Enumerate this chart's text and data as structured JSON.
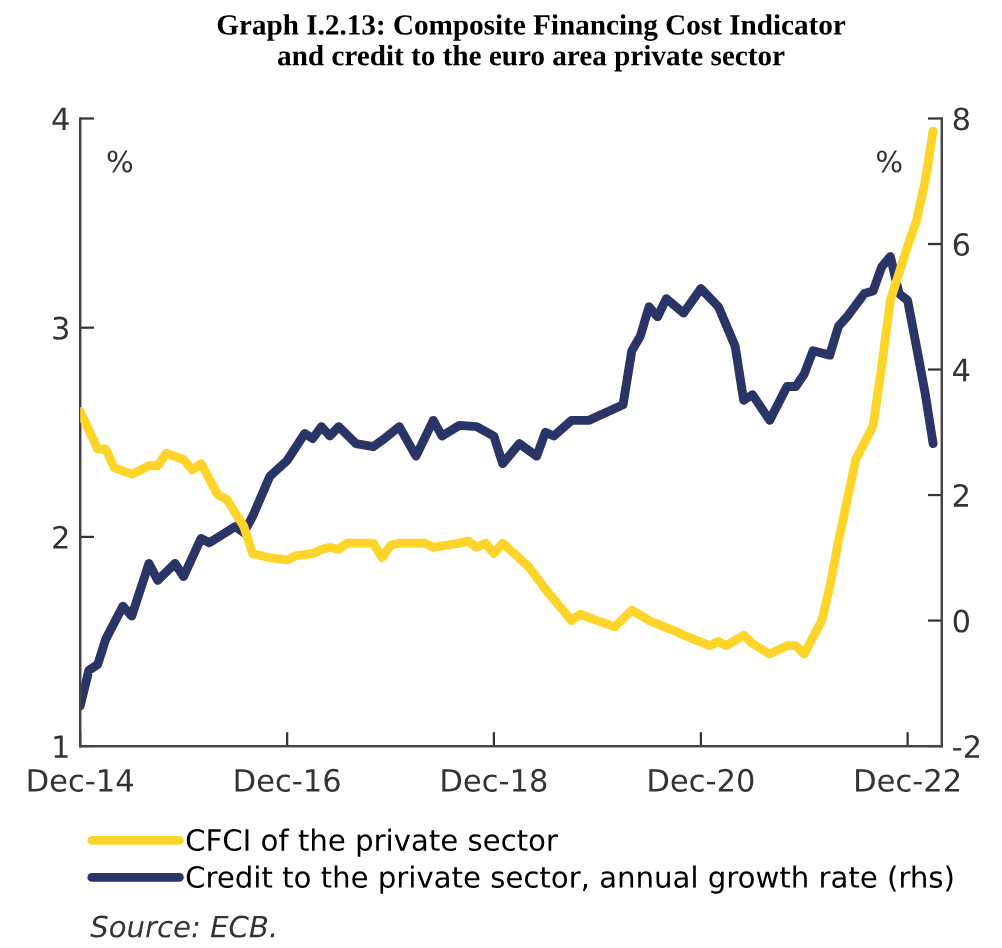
{
  "chart_data": {
    "type": "line",
    "title": "Graph I.2.13: Composite Financing Cost Indicator\nand credit to the euro area private sector",
    "xlim": [
      "2014-12",
      "2023-04"
    ],
    "xticks": [
      {
        "value": "2014-12",
        "label": "Dec-14"
      },
      {
        "value": "2016-12",
        "label": "Dec-16"
      },
      {
        "value": "2018-12",
        "label": "Dec-18"
      },
      {
        "value": "2020-12",
        "label": "Dec-20"
      },
      {
        "value": "2022-12",
        "label": "Dec-22"
      }
    ],
    "ylim": [
      1,
      4
    ],
    "yticks": [
      1,
      2,
      3,
      4
    ],
    "y2lim": [
      -2,
      8
    ],
    "y2ticks": [
      -2,
      0,
      2,
      4,
      6,
      8
    ],
    "grid": false,
    "legend": "bottom",
    "marker": "none",
    "line_style": "solid",
    "series": [
      {
        "name": "CFCI of the private sector",
        "color": "#fdd52a",
        "x": [
          "2014-12",
          "2015-02",
          "2015-03",
          "2015-04",
          "2015-06",
          "2015-08",
          "2015-09",
          "2015-10",
          "2015-12",
          "2016-01",
          "2016-02",
          "2016-04",
          "2016-05",
          "2016-07",
          "2016-08",
          "2016-10",
          "2016-12",
          "2017-01",
          "2017-03",
          "2017-04",
          "2017-05",
          "2017-06",
          "2017-07",
          "2017-10",
          "2017-11",
          "2017-12",
          "2018-01",
          "2018-04",
          "2018-05",
          "2018-08",
          "2018-09",
          "2018-10",
          "2018-11",
          "2018-12",
          "2019-01",
          "2019-04",
          "2019-06",
          "2019-09",
          "2019-10",
          "2019-12",
          "2020-02",
          "2020-04",
          "2020-06",
          "2020-09",
          "2020-10",
          "2021-01",
          "2021-02",
          "2021-03",
          "2021-05",
          "2021-06",
          "2021-08",
          "2021-10",
          "2021-11",
          "2021-12",
          "2022-02",
          "2022-03",
          "2022-04",
          "2022-06",
          "2022-08",
          "2022-09",
          "2022-10",
          "2022-12",
          "2023-01",
          "2023-02",
          "2023-03"
        ],
        "values": [
          2.6,
          2.42,
          2.42,
          2.33,
          2.3,
          2.34,
          2.34,
          2.4,
          2.37,
          2.32,
          2.35,
          2.2,
          2.18,
          2.05,
          1.92,
          1.9,
          1.89,
          1.91,
          1.92,
          1.94,
          1.95,
          1.94,
          1.97,
          1.97,
          1.9,
          1.96,
          1.97,
          1.97,
          1.95,
          1.97,
          1.98,
          1.95,
          1.97,
          1.92,
          1.97,
          1.86,
          1.75,
          1.6,
          1.63,
          1.6,
          1.57,
          1.65,
          1.6,
          1.55,
          1.53,
          1.48,
          1.5,
          1.48,
          1.53,
          1.49,
          1.44,
          1.48,
          1.48,
          1.44,
          1.6,
          1.76,
          1.98,
          2.37,
          2.53,
          2.82,
          3.13,
          3.39,
          3.51,
          3.7,
          3.94
        ]
      },
      {
        "name": "Credit to the private sector, annual growth rate (rhs)",
        "color": "#2b3467",
        "axis": "y2",
        "x": [
          "2014-12",
          "2015-01",
          "2015-02",
          "2015-03",
          "2015-05",
          "2015-06",
          "2015-08",
          "2015-09",
          "2015-11",
          "2015-12",
          "2016-02",
          "2016-03",
          "2016-06",
          "2016-07",
          "2016-08",
          "2016-10",
          "2016-12",
          "2017-02",
          "2017-03",
          "2017-04",
          "2017-05",
          "2017-06",
          "2017-08",
          "2017-10",
          "2017-11",
          "2018-01",
          "2018-03",
          "2018-05",
          "2018-06",
          "2018-08",
          "2018-10",
          "2018-12",
          "2019-01",
          "2019-03",
          "2019-05",
          "2019-06",
          "2019-07",
          "2019-09",
          "2019-11",
          "2020-02",
          "2020-03",
          "2020-04",
          "2020-05",
          "2020-06",
          "2020-07",
          "2020-08",
          "2020-10",
          "2020-12",
          "2021-02",
          "2021-04",
          "2021-05",
          "2021-06",
          "2021-08",
          "2021-10",
          "2021-11",
          "2021-12",
          "2022-01",
          "2022-03",
          "2022-04",
          "2022-05",
          "2022-07",
          "2022-08",
          "2022-09",
          "2022-10",
          "2022-11",
          "2022-12",
          "2023-01",
          "2023-02",
          "2023-03"
        ],
        "values": [
          -1.36,
          -0.79,
          -0.7,
          -0.3,
          0.23,
          0.07,
          0.91,
          0.64,
          0.91,
          0.7,
          1.31,
          1.24,
          1.5,
          1.4,
          1.66,
          2.3,
          2.55,
          2.98,
          2.9,
          3.09,
          2.94,
          3.09,
          2.82,
          2.77,
          2.87,
          3.09,
          2.62,
          3.19,
          2.94,
          3.11,
          3.09,
          2.94,
          2.5,
          2.82,
          2.62,
          3.0,
          2.94,
          3.19,
          3.19,
          3.38,
          3.44,
          4.3,
          4.53,
          5.0,
          4.84,
          5.13,
          4.9,
          5.29,
          5.0,
          4.37,
          3.51,
          3.6,
          3.19,
          3.73,
          3.73,
          3.93,
          4.3,
          4.23,
          4.69,
          4.84,
          5.21,
          5.25,
          5.64,
          5.8,
          5.21,
          5.1,
          4.37,
          3.62,
          2.82
        ]
      }
    ],
    "annotations": [
      "%",
      "%",
      "Source: ECB."
    ]
  }
}
